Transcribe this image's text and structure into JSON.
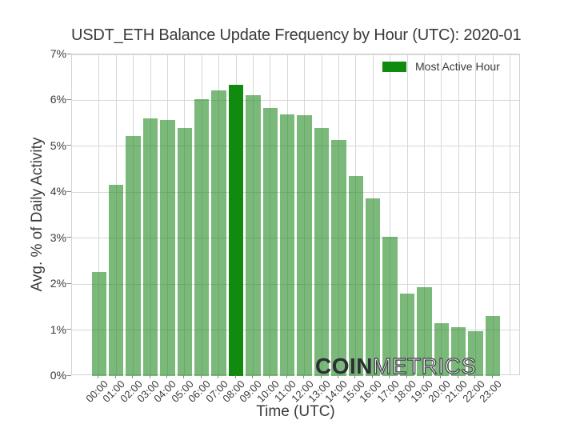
{
  "chart_data": {
    "type": "bar",
    "title": "USDT_ETH Balance Update Frequency by Hour (UTC): 2020-01",
    "xlabel": "Time (UTC)",
    "ylabel": "Avg. % of Daily Activity",
    "categories": [
      "00:00",
      "01:00",
      "02:00",
      "03:00",
      "04:00",
      "05:00",
      "06:00",
      "07:00",
      "08:00",
      "09:00",
      "10:00",
      "11:00",
      "12:00",
      "13:00",
      "14:00",
      "15:00",
      "16:00",
      "17:00",
      "18:00",
      "19:00",
      "20:00",
      "21:00",
      "22:00",
      "23:00"
    ],
    "values": [
      2.26,
      4.17,
      5.22,
      5.61,
      5.57,
      5.39,
      6.03,
      6.22,
      6.33,
      6.11,
      5.83,
      5.7,
      5.67,
      5.4,
      5.14,
      4.35,
      3.87,
      3.03,
      1.8,
      1.93,
      1.15,
      1.06,
      0.97,
      1.3
    ],
    "highlight": {
      "index": 8,
      "category": "08:00",
      "label": "Most Active Hour"
    },
    "ylim": [
      0,
      7
    ],
    "yticks": [
      "0%",
      "1%",
      "2%",
      "3%",
      "4%",
      "5%",
      "6%",
      "7%"
    ],
    "grid": true,
    "legend_position": "upper right",
    "colors": {
      "bar": "#228B22",
      "bar_alpha": 0.6,
      "highlight_bar": "#118a10",
      "grid": "#d8d8d8",
      "text": "#3a3a3a"
    }
  },
  "legend": {
    "label": "Most Active Hour",
    "swatch_color": "#118a10"
  },
  "watermark": {
    "bold": "COIN",
    "light": "METRICS"
  }
}
